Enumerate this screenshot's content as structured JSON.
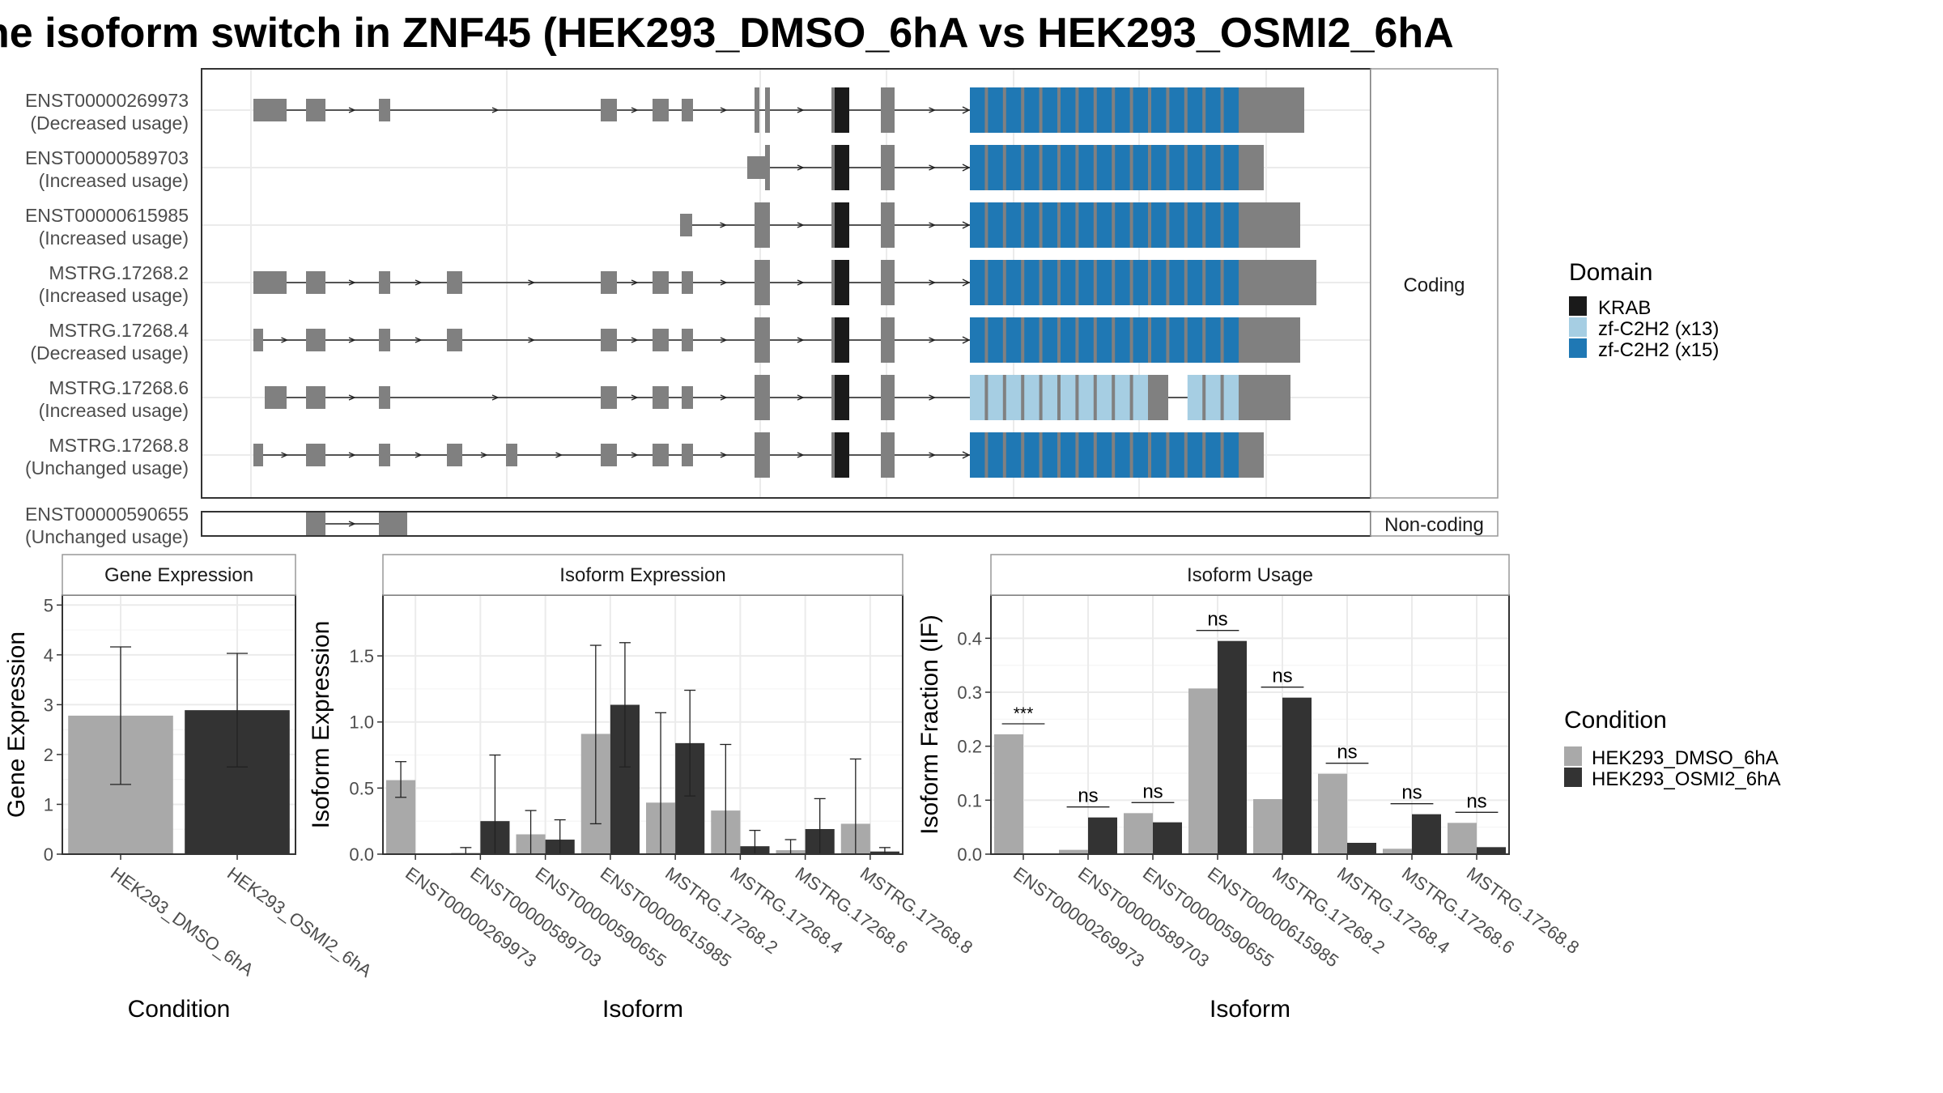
{
  "title": "he isoform switch in ZNF45 (HEK293_DMSO_6hA vs HEK293_OSMI2_6hA",
  "structure": {
    "coding_strip_label": "Coding",
    "noncoding_strip_label": "Non-coding",
    "isoforms": [
      {
        "name": "ENST00000269973",
        "usage": "(Decreased usage)",
        "group": "coding"
      },
      {
        "name": "ENST00000589703",
        "usage": "(Increased usage)",
        "group": "coding"
      },
      {
        "name": "ENST00000615985",
        "usage": "(Increased usage)",
        "group": "coding"
      },
      {
        "name": "MSTRG.17268.2",
        "usage": "(Increased usage)",
        "group": "coding"
      },
      {
        "name": "MSTRG.17268.4",
        "usage": "(Decreased usage)",
        "group": "coding"
      },
      {
        "name": "MSTRG.17268.6",
        "usage": "(Increased usage)",
        "group": "coding"
      },
      {
        "name": "MSTRG.17268.8",
        "usage": "(Unchanged usage)",
        "group": "coding"
      },
      {
        "name": "ENST00000590655",
        "usage": "(Unchanged usage)",
        "group": "noncoding"
      }
    ],
    "colors": {
      "exon": "#808080",
      "krab": "#1a1a1a",
      "zf13": "#a6cee3",
      "zf15": "#1f78b4"
    }
  },
  "domain_legend": {
    "title": "Domain",
    "items": [
      {
        "label": "KRAB",
        "color": "#1a1a1a"
      },
      {
        "label": "zf-C2H2 (x13)",
        "color": "#a6cee3"
      },
      {
        "label": "zf-C2H2 (x15)",
        "color": "#1f78b4"
      }
    ]
  },
  "condition_legend": {
    "title": "Condition",
    "items": [
      {
        "label": "HEK293_DMSO_6hA",
        "color": "#a9a9a9"
      },
      {
        "label": "HEK293_OSMI2_6hA",
        "color": "#333333"
      }
    ]
  },
  "chart_data": [
    {
      "type": "bar",
      "title": "Gene Expression",
      "xlabel": "Condition",
      "ylabel": "Gene Expression",
      "categories": [
        "HEK293_DMSO_6hA",
        "HEK293_OSMI2_6hA"
      ],
      "values": [
        2.78,
        2.89
      ],
      "error_low": [
        1.4,
        1.75
      ],
      "error_high": [
        4.16,
        4.03
      ],
      "ylim": [
        0,
        5.2
      ],
      "yticks": [
        0,
        1,
        2,
        3,
        4,
        5
      ],
      "ytick_labels": [
        "0",
        "1",
        "2",
        "3",
        "4",
        "5"
      ],
      "grid": true
    },
    {
      "type": "bar",
      "title": "Isoform Expression",
      "xlabel": "Isoform",
      "ylabel": "Isoform Expression",
      "categories": [
        "ENST00000269973",
        "ENST00000589703",
        "ENST00000590655",
        "ENST00000615985",
        "MSTRG.17268.2",
        "MSTRG.17268.4",
        "MSTRG.17268.6",
        "MSTRG.17268.8"
      ],
      "series": [
        {
          "name": "HEK293_DMSO_6hA",
          "values": [
            0.56,
            0.01,
            0.15,
            0.91,
            0.39,
            0.33,
            0.03,
            0.23
          ],
          "error_low": [
            0.43,
            0.0,
            0.0,
            0.23,
            0.0,
            0.0,
            0.0,
            0.0
          ],
          "error_high": [
            0.7,
            0.05,
            0.33,
            1.58,
            1.07,
            0.83,
            0.11,
            0.72
          ]
        },
        {
          "name": "HEK293_OSMI2_6hA",
          "values": [
            0.0,
            0.25,
            0.11,
            1.13,
            0.84,
            0.06,
            0.19,
            0.02
          ],
          "error_low": [
            0.0,
            0.0,
            0.0,
            0.66,
            0.44,
            0.0,
            0.0,
            0.0
          ],
          "error_high": [
            0.0,
            0.75,
            0.26,
            1.6,
            1.24,
            0.18,
            0.42,
            0.05
          ]
        }
      ],
      "ylim": [
        0,
        1.96
      ],
      "yticks": [
        0,
        0.5,
        1.0,
        1.5
      ],
      "ytick_labels": [
        "0.0",
        "0.5",
        "1.0",
        "1.5"
      ],
      "grid": true
    },
    {
      "type": "bar",
      "title": "Isoform Usage",
      "xlabel": "Isoform",
      "ylabel": "Isoform Fraction (IF)",
      "categories": [
        "ENST00000269973",
        "ENST00000589703",
        "ENST00000590655",
        "ENST00000615985",
        "MSTRG.17268.2",
        "MSTRG.17268.4",
        "MSTRG.17268.6",
        "MSTRG.17268.8"
      ],
      "series": [
        {
          "name": "HEK293_DMSO_6hA",
          "values": [
            0.222,
            0.008,
            0.076,
            0.307,
            0.102,
            0.149,
            0.01,
            0.058
          ]
        },
        {
          "name": "HEK293_OSMI2_6hA",
          "values": [
            0.0,
            0.068,
            0.059,
            0.395,
            0.29,
            0.021,
            0.074,
            0.013
          ]
        }
      ],
      "significance": [
        "***",
        "ns",
        "ns",
        "ns",
        "ns",
        "ns",
        "ns",
        "ns"
      ],
      "ylim": [
        0,
        0.48
      ],
      "yticks": [
        0,
        0.1,
        0.2,
        0.3,
        0.4
      ],
      "ytick_labels": [
        "0.0",
        "0.1",
        "0.2",
        "0.3",
        "0.4"
      ],
      "grid": true
    }
  ]
}
